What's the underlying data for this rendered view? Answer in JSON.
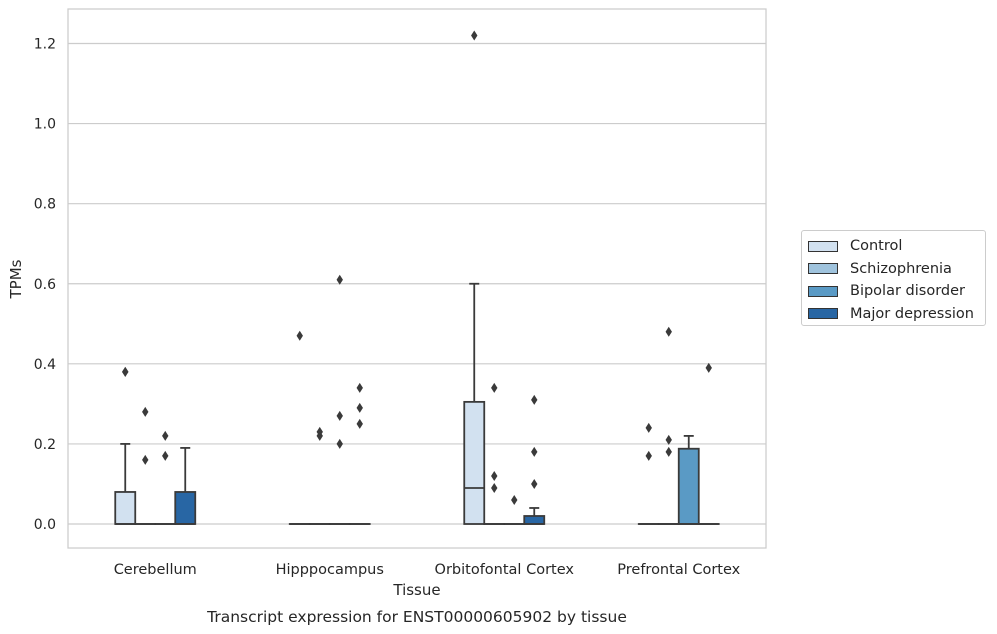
{
  "chart_data": {
    "type": "box",
    "title": "Transcript expression for ENST00000605902 by tissue",
    "xlabel": "Tissue",
    "ylabel": "TPMs",
    "ylim": [
      -0.06,
      1.28
    ],
    "yticks": [
      "0.0",
      "0.2",
      "0.4",
      "0.6",
      "0.8",
      "1.0",
      "1.2"
    ],
    "grid": true,
    "legend_position": "right",
    "categories": [
      "Cerebellum",
      "Hipppocampus",
      "Orbitofontal Cortex",
      "Prefrontal Cortex"
    ],
    "series": [
      {
        "name": "Control",
        "color": "#d2e1f0",
        "boxes": [
          {
            "q1": 0,
            "median": 0,
            "q3": 0.08,
            "whislo": 0,
            "whishi": 0.2,
            "fliers": [
              0.38,
              0.38
            ]
          },
          {
            "q1": 0,
            "median": 0,
            "q3": 0,
            "whislo": 0,
            "whishi": 0,
            "fliers": [
              0.47
            ]
          },
          {
            "q1": 0,
            "median": 0.09,
            "q3": 0.305,
            "whislo": 0,
            "whishi": 0.6,
            "fliers": [
              1.22
            ]
          },
          {
            "q1": 0,
            "median": 0,
            "q3": 0,
            "whislo": 0,
            "whishi": 0,
            "fliers": [
              0.17,
              0.24
            ]
          }
        ]
      },
      {
        "name": "Schizophrenia",
        "color": "#9fc3dd",
        "boxes": [
          {
            "q1": 0,
            "median": 0,
            "q3": 0,
            "whislo": 0,
            "whishi": 0,
            "fliers": [
              0.16,
              0.28
            ]
          },
          {
            "q1": 0,
            "median": 0,
            "q3": 0,
            "whislo": 0,
            "whishi": 0,
            "fliers": [
              0.22,
              0.23
            ]
          },
          {
            "q1": 0,
            "median": 0,
            "q3": 0,
            "whislo": 0,
            "whishi": 0,
            "fliers": [
              0.09,
              0.12,
              0.34
            ]
          },
          {
            "q1": 0,
            "median": 0,
            "q3": 0,
            "whislo": 0,
            "whishi": 0,
            "fliers": [
              0.18,
              0.21,
              0.48
            ]
          }
        ]
      },
      {
        "name": "Bipolar disorder",
        "color": "#5a9ac5",
        "boxes": [
          {
            "q1": 0,
            "median": 0,
            "q3": 0,
            "whislo": 0,
            "whishi": 0,
            "fliers": [
              0.17,
              0.22
            ]
          },
          {
            "q1": 0,
            "median": 0,
            "q3": 0,
            "whislo": 0,
            "whishi": 0,
            "fliers": [
              0.2,
              0.27,
              0.61
            ]
          },
          {
            "q1": 0,
            "median": 0,
            "q3": 0,
            "whislo": 0,
            "whishi": 0,
            "fliers": [
              0.06
            ]
          },
          {
            "q1": 0,
            "median": 0,
            "q3": 0.188,
            "whislo": 0,
            "whishi": 0.22,
            "fliers": []
          }
        ]
      },
      {
        "name": "Major depression",
        "color": "#2866a4",
        "boxes": [
          {
            "q1": 0,
            "median": 0,
            "q3": 0.08,
            "whislo": 0,
            "whishi": 0.19,
            "fliers": []
          },
          {
            "q1": 0,
            "median": 0,
            "q3": 0,
            "whislo": 0,
            "whishi": 0,
            "fliers": [
              0.25,
              0.29,
              0.34
            ]
          },
          {
            "q1": 0,
            "median": 0,
            "q3": 0.02,
            "whislo": 0,
            "whishi": 0.04,
            "fliers": [
              0.1,
              0.18,
              0.31
            ]
          },
          {
            "q1": 0,
            "median": 0,
            "q3": 0,
            "whislo": 0,
            "whishi": 0,
            "fliers": [
              0.39
            ]
          }
        ]
      }
    ]
  }
}
